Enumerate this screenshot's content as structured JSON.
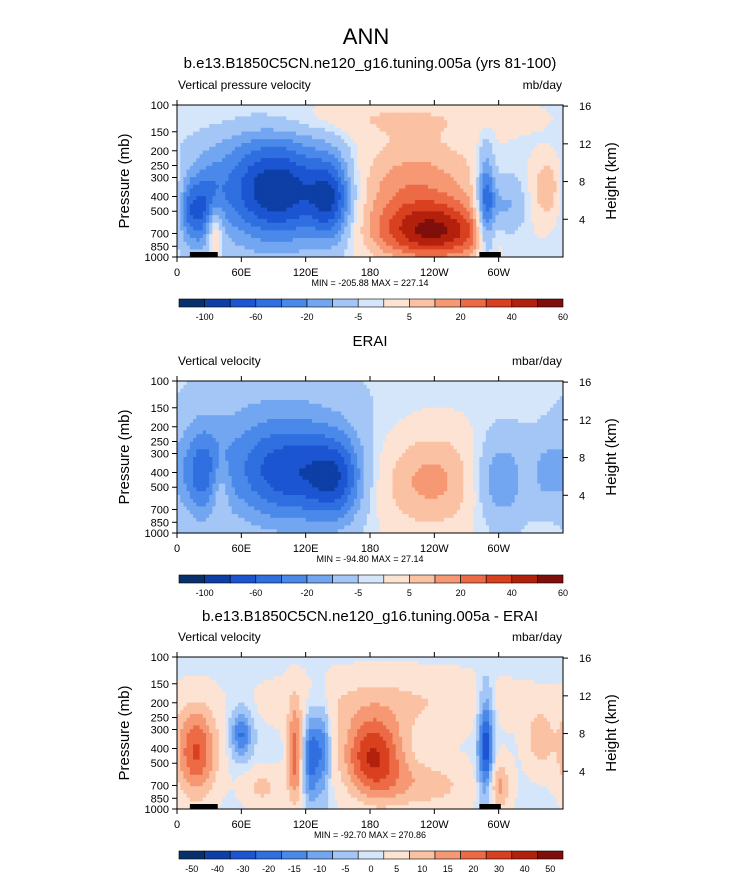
{
  "figure_title": "ANN",
  "colors": {
    "land": "#000000",
    "frame": "#000000",
    "palette": [
      "#08306b",
      "#0d3fa6",
      "#1c55d1",
      "#2f6fe0",
      "#4a89ea",
      "#73a6f1",
      "#a3c6f6",
      "#d6e6fa",
      "#fde3d3",
      "#fbc1a3",
      "#f69873",
      "#ec6a45",
      "#d8401f",
      "#b3200c",
      "#7f0f0b"
    ]
  },
  "chart_data": [
    {
      "type": "heatmap",
      "title": "b.e13.B1850C5CN.ne120_g16.tuning.005a (yrs 81-100)",
      "left_label": "Vertical pressure velocity",
      "units": "mb/day",
      "ylabel": "Pressure (mb)",
      "ylabel_right": "Height (km)",
      "x_ticks": [
        "0",
        "60E",
        "120E",
        "180",
        "120W",
        "60W"
      ],
      "x_tick_lon": [
        0,
        60,
        120,
        180,
        240,
        300
      ],
      "xlim": [
        0,
        360
      ],
      "y_ticks": [
        "100",
        "150",
        "200",
        "250",
        "300",
        "400",
        "500",
        "700",
        "850",
        "1000"
      ],
      "y_tick_values": [
        100,
        150,
        200,
        250,
        300,
        400,
        500,
        700,
        850,
        1000
      ],
      "ylim": [
        100,
        1000
      ],
      "height_ticks": [
        "16",
        "12",
        "8",
        "4"
      ],
      "height_values": [
        16,
        12,
        8,
        4
      ],
      "stats": "MIN = -205.88  MAX = 227.14",
      "colorbar_labels": [
        "-100",
        "-60",
        "-20",
        "-5",
        "5",
        "20",
        "40",
        "60"
      ],
      "features": [
        {
          "lon": 28,
          "width": 10,
          "plev": 500,
          "depth": 1.15,
          "amp": -3.6
        },
        {
          "lon": 35,
          "width": 6,
          "plev": 650,
          "depth": 0.9,
          "amp": 3.8
        },
        {
          "lon": 12,
          "width": 7,
          "plev": 500,
          "depth": 1.0,
          "amp": -2.6
        },
        {
          "lon": 98,
          "width": 36,
          "plev": 380,
          "depth": 1.5,
          "amp": -4.6
        },
        {
          "lon": 145,
          "width": 14,
          "plev": 420,
          "depth": 1.3,
          "amp": -4.2
        },
        {
          "lon": 80,
          "width": 45,
          "plev": 300,
          "depth": 2.0,
          "amp": -2.2
        },
        {
          "lon": 240,
          "width": 40,
          "plev": 700,
          "depth": 0.9,
          "amp": 5.4
        },
        {
          "lon": 220,
          "width": 50,
          "plev": 350,
          "depth": 1.6,
          "amp": 3.2
        },
        {
          "lon": 288,
          "width": 6,
          "plev": 450,
          "depth": 1.6,
          "amp": -4.8
        },
        {
          "lon": 305,
          "width": 14,
          "plev": 500,
          "depth": 1.1,
          "amp": -2.8
        },
        {
          "lon": 345,
          "width": 10,
          "plev": 350,
          "depth": 1.0,
          "amp": 2.5
        },
        {
          "lon": 180,
          "width": 120,
          "plev": 120,
          "depth": 0.6,
          "amp": 1.2
        }
      ],
      "land": [
        [
          12,
          38
        ],
        [
          282,
          302
        ]
      ]
    },
    {
      "type": "heatmap",
      "title": "ERAI",
      "left_label": "Vertical velocity",
      "units": "mbar/day",
      "ylabel": "Pressure (mb)",
      "ylabel_right": "Height (km)",
      "x_ticks": [
        "0",
        "60E",
        "120E",
        "180",
        "120W",
        "60W"
      ],
      "x_tick_lon": [
        0,
        60,
        120,
        180,
        240,
        300
      ],
      "xlim": [
        0,
        360
      ],
      "y_ticks": [
        "100",
        "150",
        "200",
        "250",
        "300",
        "400",
        "500",
        "700",
        "850",
        "1000"
      ],
      "y_tick_values": [
        100,
        150,
        200,
        250,
        300,
        400,
        500,
        700,
        850,
        1000
      ],
      "ylim": [
        100,
        1000
      ],
      "height_ticks": [
        "16",
        "12",
        "8",
        "4"
      ],
      "height_values": [
        16,
        12,
        8,
        4
      ],
      "stats": "MIN = -94.80  MAX = 27.14",
      "colorbar_labels": [
        "-100",
        "-60",
        "-20",
        "-5",
        "5",
        "20",
        "40",
        "60"
      ],
      "features": [
        {
          "lon": 22,
          "width": 14,
          "plev": 400,
          "depth": 1.4,
          "amp": -3.1
        },
        {
          "lon": 40,
          "width": 6,
          "plev": 500,
          "depth": 1.0,
          "amp": 1.6
        },
        {
          "lon": 105,
          "width": 38,
          "plev": 420,
          "depth": 1.5,
          "amp": -3.6
        },
        {
          "lon": 150,
          "width": 18,
          "plev": 450,
          "depth": 1.3,
          "amp": -3.2
        },
        {
          "lon": 95,
          "width": 60,
          "plev": 280,
          "depth": 2.2,
          "amp": -1.9
        },
        {
          "lon": 235,
          "width": 42,
          "plev": 450,
          "depth": 1.6,
          "amp": 2.9
        },
        {
          "lon": 300,
          "width": 18,
          "plev": 450,
          "depth": 1.4,
          "amp": -3.0
        },
        {
          "lon": 345,
          "width": 10,
          "plev": 400,
          "depth": 1.0,
          "amp": -1.6
        }
      ],
      "land": []
    },
    {
      "type": "heatmap",
      "title": "b.e13.B1850C5CN.ne120_g16.tuning.005a - ERAI",
      "left_label": "Vertical velocity",
      "units": "mbar/day",
      "ylabel": "Pressure (mb)",
      "ylabel_right": "Height (km)",
      "x_ticks": [
        "0",
        "60E",
        "120E",
        "180",
        "120W",
        "60W"
      ],
      "x_tick_lon": [
        0,
        60,
        120,
        180,
        240,
        300
      ],
      "xlim": [
        0,
        360
      ],
      "y_ticks": [
        "100",
        "150",
        "200",
        "250",
        "300",
        "400",
        "500",
        "700",
        "850",
        "1000"
      ],
      "y_tick_values": [
        100,
        150,
        200,
        250,
        300,
        400,
        500,
        700,
        850,
        1000
      ],
      "ylim": [
        100,
        1000
      ],
      "height_ticks": [
        "16",
        "12",
        "8",
        "4"
      ],
      "height_values": [
        16,
        12,
        8,
        4
      ],
      "stats": "MIN = -92.70  MAX = 270.86",
      "colorbar_labels": [
        "-50",
        "-40",
        "-30",
        "-20",
        "-15",
        "-10",
        "-5",
        "0",
        "5",
        "10",
        "15",
        "20",
        "30",
        "40",
        "50"
      ],
      "features": [
        {
          "lon": 18,
          "width": 14,
          "plev": 420,
          "depth": 1.4,
          "amp": 4.6
        },
        {
          "lon": 60,
          "width": 7,
          "plev": 320,
          "depth": 0.7,
          "amp": -3.8
        },
        {
          "lon": 110,
          "width": 5,
          "plev": 450,
          "depth": 1.5,
          "amp": 3.9
        },
        {
          "lon": 125,
          "width": 5,
          "plev": 450,
          "depth": 1.4,
          "amp": -4.2
        },
        {
          "lon": 136,
          "width": 5,
          "plev": 400,
          "depth": 1.4,
          "amp": -3.4
        },
        {
          "lon": 183,
          "width": 20,
          "plev": 450,
          "depth": 1.2,
          "amp": 5.4
        },
        {
          "lon": 230,
          "width": 35,
          "plev": 700,
          "depth": 0.8,
          "amp": 2.0
        },
        {
          "lon": 200,
          "width": 80,
          "plev": 200,
          "depth": 1.0,
          "amp": 1.6
        },
        {
          "lon": 288,
          "width": 5,
          "plev": 400,
          "depth": 1.6,
          "amp": -5.6
        },
        {
          "lon": 300,
          "width": 8,
          "plev": 700,
          "depth": 0.8,
          "amp": 2.6
        },
        {
          "lon": 80,
          "width": 14,
          "plev": 720,
          "depth": 0.6,
          "amp": 1.8
        },
        {
          "lon": 338,
          "width": 10,
          "plev": 350,
          "depth": 1.0,
          "amp": 2.0
        }
      ],
      "land": [
        [
          12,
          38
        ],
        [
          282,
          302
        ]
      ]
    }
  ]
}
